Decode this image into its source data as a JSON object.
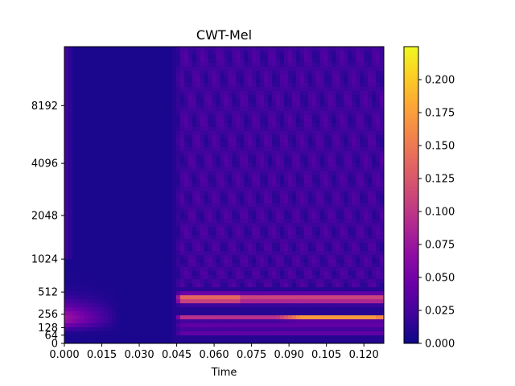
{
  "chart_data": {
    "type": "heatmap",
    "title": "CWT-Mel",
    "xlabel": "Time",
    "ylabel": "",
    "colormap": "plasma",
    "xlim": [
      0.0,
      0.128
    ],
    "x_ticks": [
      0.0,
      0.015,
      0.03,
      0.045,
      0.06,
      0.075,
      0.09,
      0.105,
      0.12
    ],
    "x_tick_labels": [
      "0.000",
      "0.015",
      "0.030",
      "0.045",
      "0.060",
      "0.075",
      "0.090",
      "0.105",
      "0.120"
    ],
    "y_scale": "mel",
    "ylim_hz": [
      0,
      16000
    ],
    "y_ticks_hz": [
      0,
      64,
      128,
      256,
      512,
      1024,
      2048,
      4096,
      8192
    ],
    "y_tick_labels": [
      "0",
      "64",
      "128",
      "256",
      "512",
      "1024",
      "2048",
      "4096",
      "8192"
    ],
    "colorbar": {
      "range": [
        0.0,
        0.225
      ],
      "ticks": [
        0.0,
        0.025,
        0.05,
        0.075,
        0.1,
        0.125,
        0.15,
        0.175,
        0.2
      ],
      "tick_labels": [
        "0.000",
        "0.025",
        "0.050",
        "0.075",
        "0.100",
        "0.125",
        "0.150",
        "0.175",
        "0.200"
      ]
    },
    "features": [
      {
        "description": "Silent region (near zero energy) from onset until ~0.044 s",
        "time_range": [
          0.0,
          0.044
        ],
        "value": 0.0
      },
      {
        "description": "Strong band around 400-450 Hz",
        "time_range": [
          0.045,
          0.128
        ],
        "freq_hz": 430,
        "peak_value": 0.14
      },
      {
        "description": "Strong band around 200-230 Hz, brightest 0.09-0.125 s",
        "time_range": [
          0.045,
          0.128
        ],
        "freq_hz": 215,
        "peak_value": 0.215
      },
      {
        "description": "Low-level broadband texture above 1 kHz after onset",
        "time_range": [
          0.045,
          0.128
        ],
        "value": 0.02
      },
      {
        "description": "Faint energy at start, ~200 Hz decaying",
        "time_range": [
          0.0,
          0.02
        ],
        "freq_hz": 220,
        "peak_value": 0.07
      }
    ]
  }
}
